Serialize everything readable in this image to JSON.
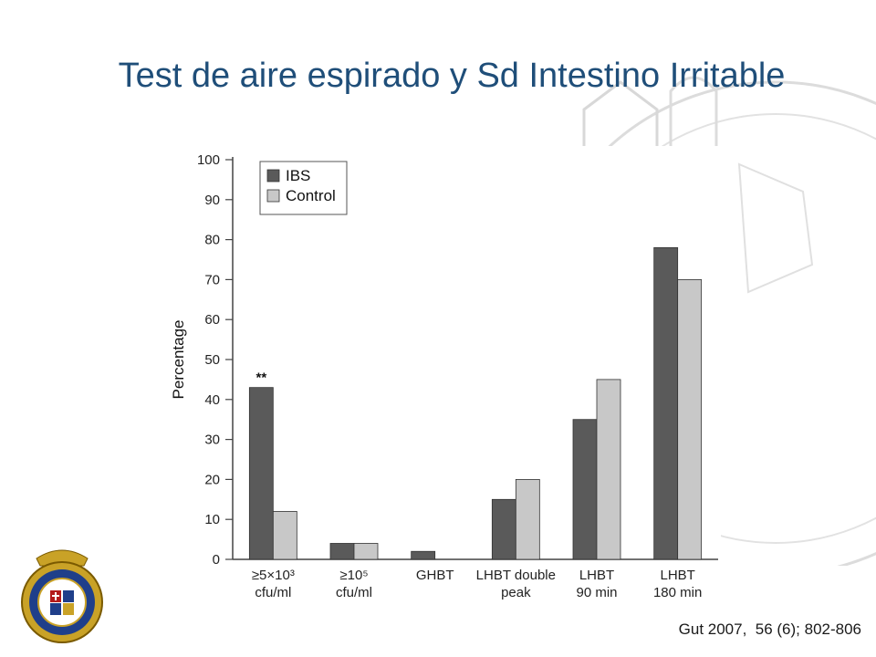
{
  "slide": {
    "title": "Test de aire espirado y Sd Intestino Irritable",
    "citation": "Gut 2007,  56 (6); 802-806"
  },
  "colors": {
    "title": "#1f4e79",
    "ibs_bar": "#5a5a5a",
    "control_bar": "#c8c8c8",
    "watermark": "#d9d9d9"
  },
  "chart_data": {
    "type": "bar",
    "title": "",
    "xlabel": "",
    "ylabel": "Percentage",
    "ylim": [
      0,
      100
    ],
    "yticks": [
      0,
      10,
      20,
      30,
      40,
      50,
      60,
      70,
      80,
      90,
      100
    ],
    "grid": false,
    "legend_position": "top-left",
    "categories": [
      [
        "≥5×10³",
        "cfu/ml"
      ],
      [
        "≥10⁵",
        "cfu/ml"
      ],
      [
        "GHBT"
      ],
      [
        "LHBT double",
        "peak"
      ],
      [
        "LHBT",
        "90 min"
      ],
      [
        "LHBT",
        "180 min"
      ]
    ],
    "series": [
      {
        "name": "IBS",
        "values": [
          43,
          4,
          2,
          15,
          35,
          78
        ]
      },
      {
        "name": "Control",
        "values": [
          12,
          4,
          0,
          20,
          45,
          70
        ]
      }
    ],
    "annotations": [
      {
        "text": "**",
        "category_index": 0,
        "series_index": 0
      }
    ]
  }
}
